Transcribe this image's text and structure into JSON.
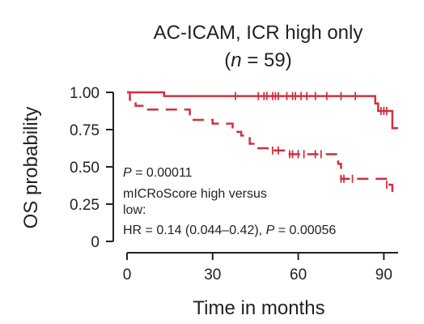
{
  "chart_data": {
    "type": "line",
    "title": "AC-ICAM, ICR high only",
    "subtitle": {
      "open": "(",
      "italic": "n",
      "rest": " = 59)"
    },
    "xlabel": "Time in months",
    "ylabel": "OS probability",
    "xlim": [
      0,
      95
    ],
    "ylim": [
      0,
      1
    ],
    "x_ticks": [
      0,
      30,
      60,
      90
    ],
    "x_tick_labels": [
      "0",
      "30",
      "60",
      "90"
    ],
    "y_ticks": [
      0,
      0.25,
      0.5,
      0.75,
      1.0
    ],
    "y_tick_labels": [
      "0",
      "0.25",
      "0.50",
      "0.75",
      "1.00"
    ],
    "grid": false,
    "annotations": {
      "p_value": {
        "italic": "P",
        "rest": " = 0.00011"
      },
      "line1": "mICRoScore high versus",
      "line2": "low:",
      "line3": {
        "pre": "HR = 0.14 (0.044–0.42), ",
        "italic": "P",
        "rest": " = 0.00056"
      }
    },
    "series": [
      {
        "style": "solid",
        "color": "#d1303f",
        "steps": [
          [
            0,
            1.0
          ],
          [
            13,
            0.975
          ],
          [
            87,
            0.925
          ],
          [
            88,
            0.875
          ],
          [
            93,
            0.76
          ],
          [
            95,
            0.76
          ]
        ],
        "censors": [
          [
            38,
            0.975
          ],
          [
            46,
            0.975
          ],
          [
            48,
            0.975
          ],
          [
            49,
            0.975
          ],
          [
            51,
            0.975
          ],
          [
            52,
            0.975
          ],
          [
            53,
            0.975
          ],
          [
            56,
            0.975
          ],
          [
            58,
            0.975
          ],
          [
            59,
            0.975
          ],
          [
            61,
            0.975
          ],
          [
            63,
            0.975
          ],
          [
            66,
            0.975
          ],
          [
            70,
            0.975
          ],
          [
            75,
            0.975
          ],
          [
            80,
            0.975
          ],
          [
            89,
            0.875
          ],
          [
            90,
            0.875
          ],
          [
            91,
            0.875
          ]
        ]
      },
      {
        "style": "dashed",
        "color": "#d1303f",
        "steps": [
          [
            0,
            1.0
          ],
          [
            1,
            0.95
          ],
          [
            3,
            0.91
          ],
          [
            6,
            0.885
          ],
          [
            22,
            0.815
          ],
          [
            30,
            0.79
          ],
          [
            37,
            0.735
          ],
          [
            40,
            0.71
          ],
          [
            43,
            0.655
          ],
          [
            45,
            0.625
          ],
          [
            50,
            0.61
          ],
          [
            55,
            0.585
          ],
          [
            74,
            0.52
          ],
          [
            75,
            0.42
          ],
          [
            92,
            0.38
          ],
          [
            93,
            0.32
          ],
          [
            95,
            0.32
          ]
        ],
        "censors": [
          [
            51,
            0.61
          ],
          [
            53,
            0.61
          ],
          [
            57,
            0.585
          ],
          [
            58,
            0.585
          ],
          [
            60,
            0.585
          ],
          [
            62,
            0.585
          ],
          [
            66,
            0.585
          ],
          [
            68,
            0.585
          ],
          [
            75,
            0.42
          ],
          [
            76,
            0.42
          ],
          [
            79,
            0.42
          ],
          [
            91,
            0.38
          ]
        ]
      }
    ]
  }
}
